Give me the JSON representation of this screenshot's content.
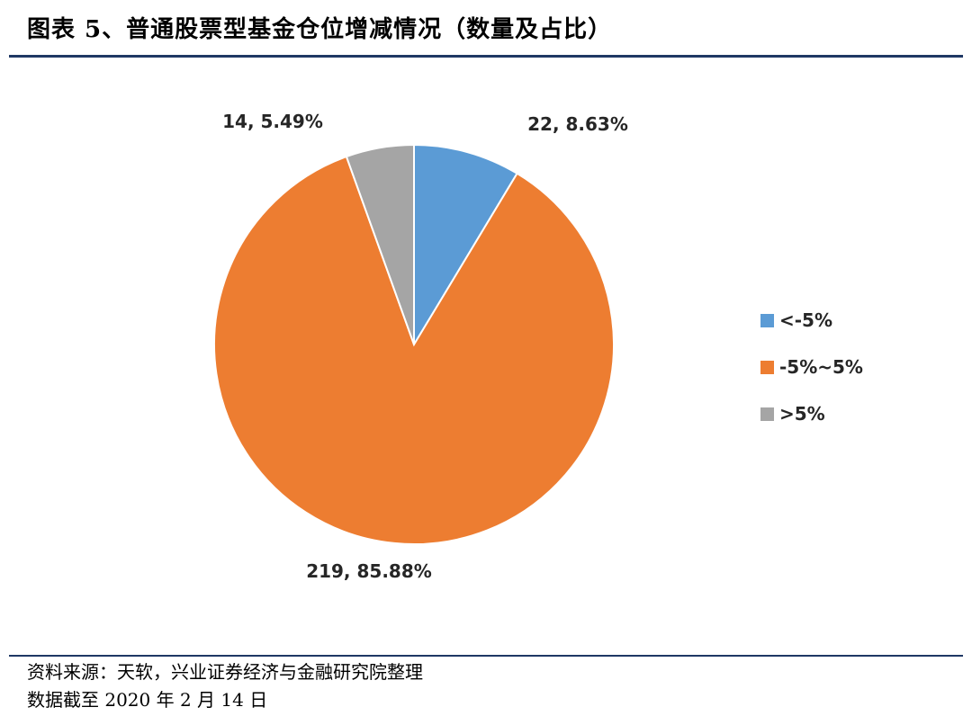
{
  "title": "图表 5、普通股票型基金仓位增减情况（数量及占比）",
  "chart_data": {
    "type": "pie",
    "slices": [
      {
        "name": "<-5%",
        "count": 22,
        "percent": 8.63,
        "label": "22, 8.63%",
        "color": "#5B9BD5"
      },
      {
        "name": "-5%~5%",
        "count": 219,
        "percent": 85.88,
        "label": "219, 85.88%",
        "color": "#ED7D31"
      },
      {
        "name": ">5%",
        "count": 14,
        "percent": 5.49,
        "label": "14, 5.49%",
        "color": "#A5A5A5"
      }
    ],
    "legend_position": "right"
  },
  "footer": {
    "source": "资料来源：天软，兴业证券经济与金融研究院整理",
    "date_note": "数据截至 2020 年 2 月 14 日"
  }
}
